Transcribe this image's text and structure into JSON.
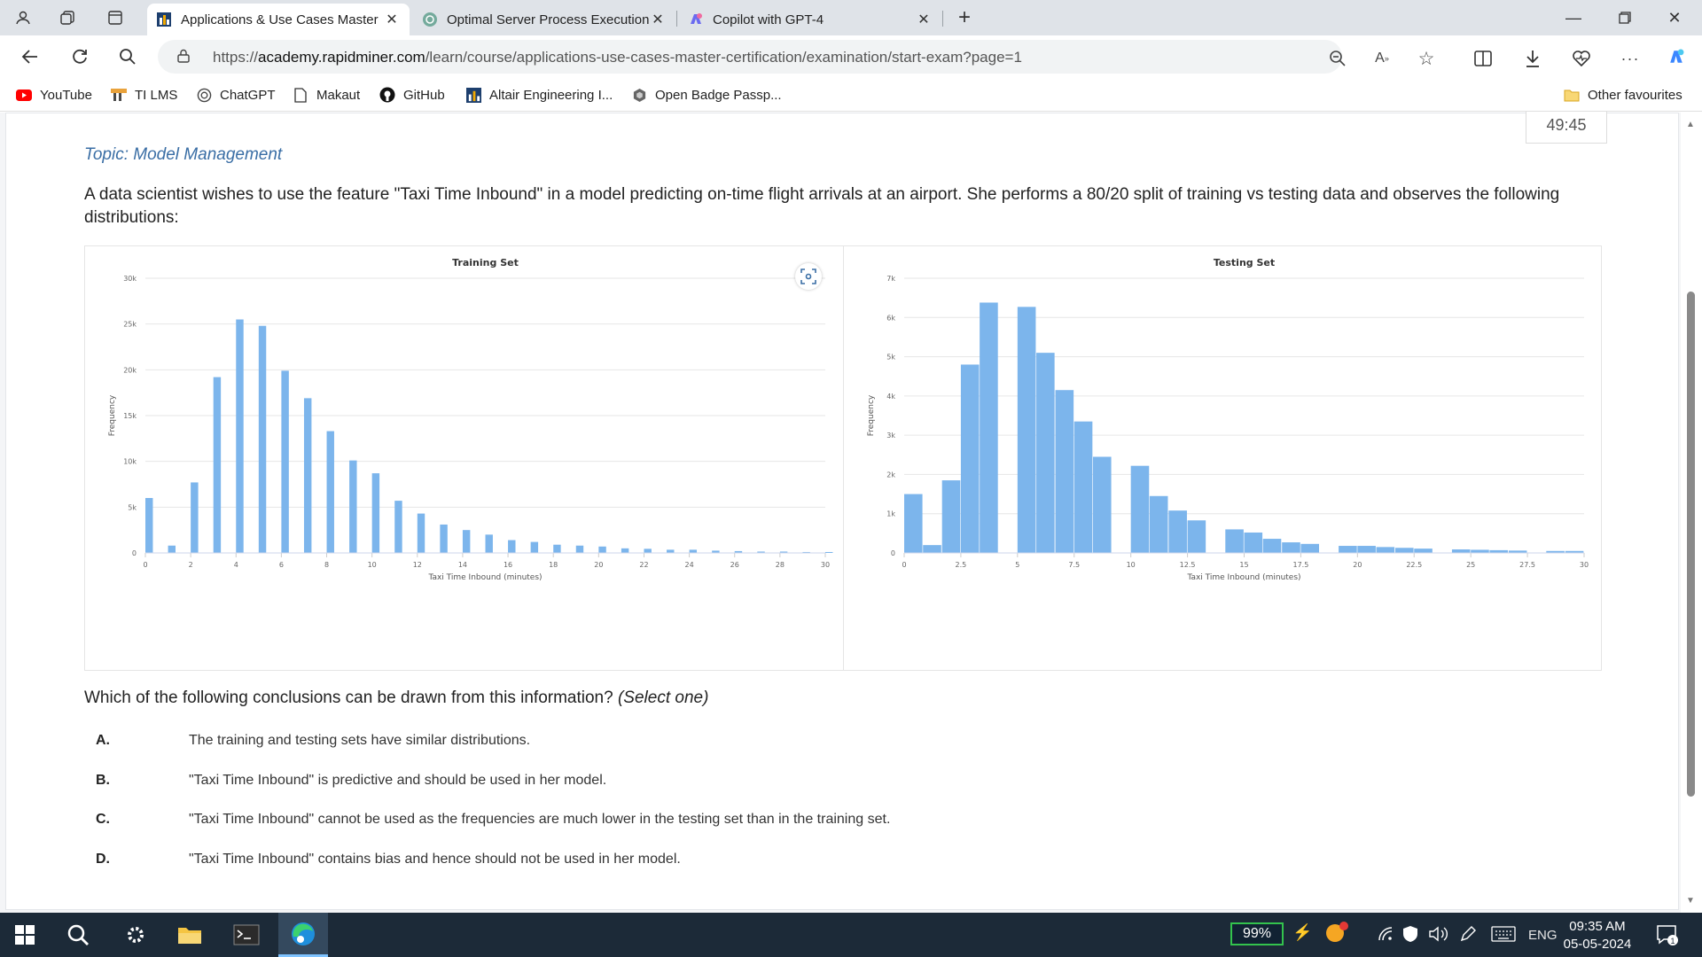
{
  "browser": {
    "tabs": [
      {
        "title": "Applications & Use Cases Master",
        "active": true
      },
      {
        "title": "Optimal Server Process Execution",
        "active": false
      },
      {
        "title": "Copilot with GPT-4",
        "active": false
      }
    ],
    "url_prefix": "https://",
    "url_domain": "academy.rapidminer.com",
    "url_path": "/learn/course/applications-use-cases-master-certification/examination/start-exam?page=1"
  },
  "bookmarks": {
    "items": [
      "YouTube",
      "TI LMS",
      "ChatGPT",
      "Makaut",
      "GitHub",
      "Altair Engineering I...",
      "Open Badge Passp..."
    ],
    "other": "Other favourites"
  },
  "exam": {
    "timer": "49:45",
    "topic": "Topic: Model Management",
    "question": "A data scientist wishes to use the feature \"Taxi Time Inbound\" in a model predicting on-time flight arrivals at an airport. She performs a 80/20 split of training vs testing data and observes the following distributions:",
    "prompt_main": "Which of the following conclusions can be drawn from this information? ",
    "prompt_note": "(Select one)",
    "options": [
      {
        "letter": "A.",
        "text": "The training and testing sets have similar distributions."
      },
      {
        "letter": "B.",
        "text": "\"Taxi Time Inbound\" is predictive and should be used in her model."
      },
      {
        "letter": "C.",
        "text": "\"Taxi Time Inbound\" cannot be used as the frequencies are much lower in the testing set than in the training set."
      },
      {
        "letter": "D.",
        "text": "\"Taxi Time Inbound\" contains bias and hence should not be used in her model."
      }
    ]
  },
  "chart_data": [
    {
      "type": "bar",
      "title": "Training Set",
      "xlabel": "Taxi Time Inbound (minutes)",
      "ylabel": "Frequency",
      "xlim": [
        0,
        30
      ],
      "ylim": [
        0,
        30000
      ],
      "x_ticks": [
        "0",
        "2",
        "4",
        "6",
        "8",
        "10",
        "12",
        "14",
        "16",
        "18",
        "20",
        "22",
        "24",
        "26",
        "28",
        "30"
      ],
      "y_ticks": [
        "0",
        "5k",
        "10k",
        "15k",
        "20k",
        "25k",
        "30k"
      ],
      "grid": true,
      "color": "#7cb5ec",
      "x": [
        0,
        1,
        2,
        3,
        4,
        5,
        6,
        7,
        8,
        9,
        10,
        11,
        12,
        13,
        14,
        15,
        16,
        17,
        18,
        19,
        20,
        21,
        22,
        23,
        24,
        25,
        26,
        27,
        28,
        29,
        30
      ],
      "values": [
        6000,
        800,
        7700,
        19200,
        25500,
        24800,
        19900,
        16900,
        13300,
        10100,
        8700,
        5700,
        4300,
        3100,
        2500,
        2000,
        1400,
        1200,
        900,
        800,
        700,
        500,
        450,
        350,
        350,
        250,
        200,
        150,
        150,
        100,
        100
      ]
    },
    {
      "type": "bar",
      "title": "Testing Set",
      "xlabel": "Taxi Time Inbound (minutes)",
      "ylabel": "Frequency",
      "xlim": [
        0,
        30
      ],
      "ylim": [
        0,
        7000
      ],
      "x_ticks": [
        "0",
        "2.5",
        "5",
        "7.5",
        "10",
        "12.5",
        "15",
        "17.5",
        "20",
        "22.5",
        "25",
        "27.5",
        "30"
      ],
      "y_ticks": [
        "0",
        "1k",
        "2k",
        "3k",
        "4k",
        "5k",
        "6k",
        "7k"
      ],
      "grid": true,
      "color": "#7cb5ec",
      "x": [
        0,
        0.83,
        1.67,
        2.5,
        3.33,
        4.17,
        5,
        5.83,
        6.67,
        7.5,
        8.33,
        9.17,
        10,
        10.83,
        11.67,
        12.5,
        13.33,
        14.17,
        15,
        15.83,
        16.67,
        17.5,
        18.33,
        19.17,
        20,
        20.83,
        21.67,
        22.5,
        23.33,
        24.17,
        25,
        25.83,
        26.67,
        27.5,
        28.33,
        29.17
      ],
      "values": [
        1500,
        200,
        1850,
        4800,
        6380,
        0,
        6270,
        5100,
        4150,
        3350,
        2450,
        0,
        2220,
        1450,
        1080,
        830,
        0,
        600,
        520,
        360,
        270,
        230,
        0,
        180,
        180,
        150,
        130,
        110,
        0,
        90,
        80,
        70,
        60,
        0,
        50,
        50
      ]
    }
  ]
}
